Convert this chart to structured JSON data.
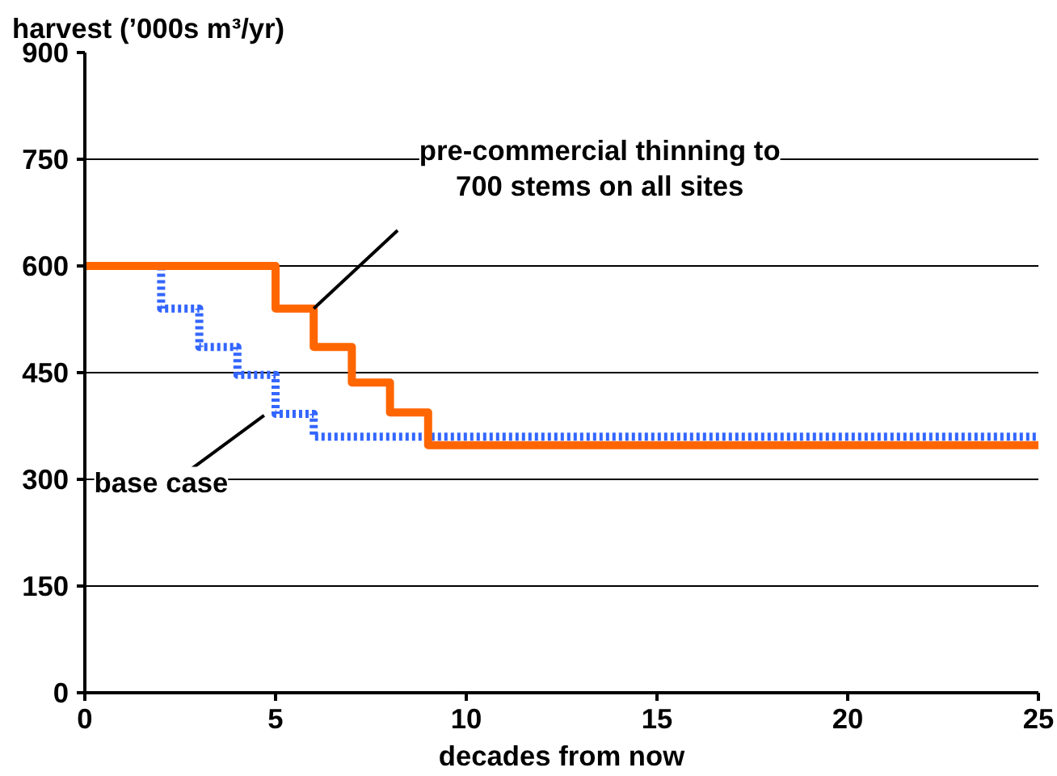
{
  "chart_data": {
    "type": "step",
    "xlabel": "decades from now",
    "ylabel": "harvest (’000s m³/yr)",
    "xlim": [
      0,
      25
    ],
    "xticks": [
      0,
      5,
      10,
      15,
      20,
      25
    ],
    "ylim": [
      0,
      900
    ],
    "yticks": [
      0,
      150,
      300,
      450,
      600,
      750,
      900
    ],
    "grid": "y",
    "series": [
      {
        "color": "#ff6600",
        "line_style": "solid",
        "x": [
          0,
          5,
          6,
          7,
          8,
          9,
          25
        ],
        "values": [
          600,
          540,
          486,
          436,
          394,
          348,
          348
        ]
      },
      {
        "color": "#3366ff",
        "line_style": "dotted",
        "x": [
          0,
          2,
          3,
          4,
          5,
          6,
          25
        ],
        "values": [
          600,
          540,
          486,
          447,
          392,
          360,
          360
        ]
      }
    ],
    "annotations": [
      {
        "text": "pre-commercial thinning to\n700 stems on all sites",
        "x": 6,
        "y": 540
      },
      {
        "text": "base case",
        "x": 5,
        "y": 400
      }
    ]
  }
}
